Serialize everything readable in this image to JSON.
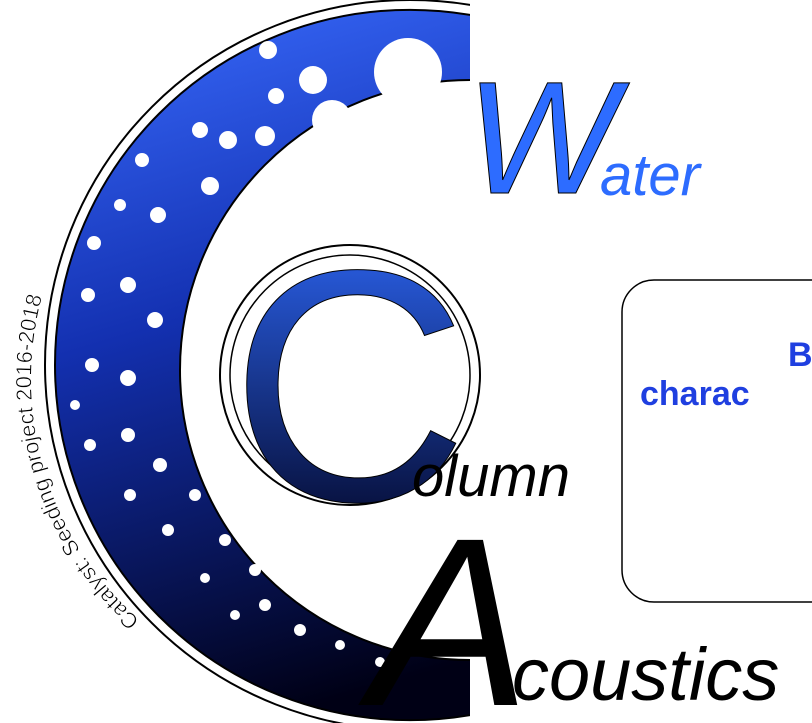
{
  "logo": {
    "words": [
      {
        "initial": "W",
        "rest": "ater"
      },
      {
        "initial": "C",
        "rest": "olumn"
      },
      {
        "initial": "A",
        "rest": "coustics"
      }
    ],
    "tagline": "Catalyst: Seeding project 2016-2018"
  },
  "box": {
    "lines": [
      "Bu",
      "charac"
    ]
  }
}
